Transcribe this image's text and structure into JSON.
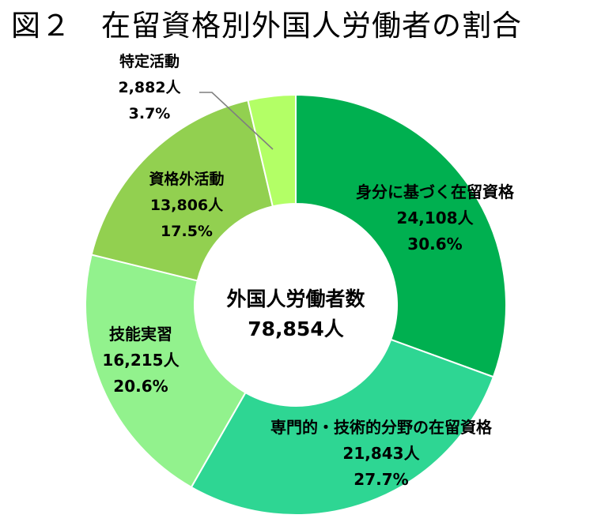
{
  "title": "図２　在留資格別外国人労働者の割合",
  "chart_data": {
    "type": "pie",
    "title": "図２　在留資格別外国人労働者の割合",
    "center_label": {
      "title": "外国人労働者数",
      "total": "78,854人"
    },
    "slices": [
      {
        "name": "身分に基づく在留資格",
        "value": 24108,
        "value_label": "24,108人",
        "percent": 30.6,
        "percent_label": "30.6%",
        "color": "#00B050"
      },
      {
        "name": "専門的・技術的分野の在留資格",
        "value": 21843,
        "value_label": "21,843人",
        "percent": 27.7,
        "percent_label": "27.7%",
        "color": "#2ED693"
      },
      {
        "name": "技能実習",
        "value": 16215,
        "value_label": "16,215人",
        "percent": 20.6,
        "percent_label": "20.6%",
        "color": "#92F28D"
      },
      {
        "name": "資格外活動",
        "value": 13806,
        "value_label": "13,806人",
        "percent": 17.5,
        "percent_label": "17.5%",
        "color": "#92D050"
      },
      {
        "name": "特定活動",
        "value": 2882,
        "value_label": "2,882人",
        "percent": 3.7,
        "percent_label": "3.7%",
        "color": "#B3FF66"
      }
    ]
  }
}
